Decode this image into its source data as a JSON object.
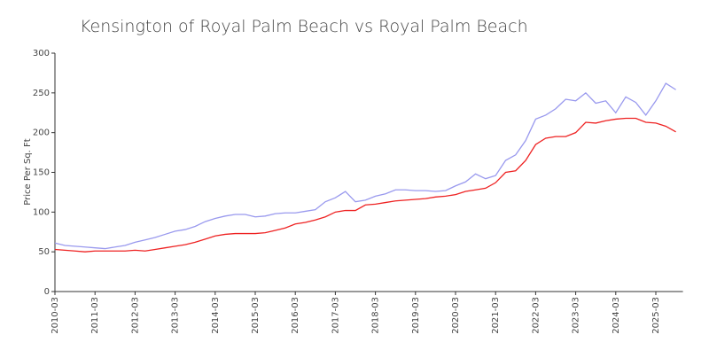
{
  "chart_data": {
    "type": "line",
    "title": "Kensington of Royal Palm Beach vs Royal Palm Beach",
    "y_label": "Price Per Sq. Ft",
    "categories": [
      "2010-03",
      null,
      null,
      null,
      "2011-03",
      null,
      null,
      null,
      "2012-03",
      null,
      null,
      null,
      "2013-03",
      null,
      null,
      null,
      "2014-03",
      null,
      null,
      null,
      "2015-03",
      null,
      null,
      null,
      "2016-03",
      null,
      null,
      null,
      "2017-03",
      null,
      null,
      null,
      "2018-03",
      null,
      null,
      null,
      "2019-03",
      null,
      null,
      null,
      "2020-03",
      null,
      null,
      null,
      "2021-03",
      null,
      null,
      null,
      "2022-03",
      null,
      null,
      null,
      "2023-03",
      null,
      null,
      null,
      "2024-03",
      null,
      null,
      null,
      "2025-03",
      null,
      null
    ],
    "series": [
      {
        "color": "#9999ee",
        "values": [
          61,
          58,
          57,
          56,
          55,
          54,
          56,
          58,
          62,
          65,
          68,
          72,
          76,
          78,
          82,
          88,
          92,
          95,
          97,
          97,
          94,
          95,
          98,
          99,
          99,
          101,
          103,
          113,
          118,
          126,
          113,
          115,
          120,
          123,
          128,
          128,
          127,
          127,
          126,
          127,
          133,
          138,
          148,
          142,
          146,
          165,
          172,
          190,
          217,
          222,
          230,
          242,
          240,
          250,
          237,
          240,
          225,
          245,
          238,
          222,
          240,
          262,
          254
        ]
      },
      {
        "color": "#ee2222",
        "values": [
          53,
          52,
          51,
          50,
          51,
          51,
          51,
          51,
          52,
          51,
          53,
          55,
          57,
          59,
          62,
          66,
          70,
          72,
          73,
          73,
          73,
          74,
          77,
          80,
          85,
          87,
          90,
          94,
          100,
          102,
          102,
          109,
          110,
          112,
          114,
          115,
          116,
          117,
          119,
          120,
          122,
          126,
          128,
          130,
          137,
          150,
          152,
          165,
          185,
          193,
          195,
          195,
          200,
          213,
          212,
          215,
          217,
          218,
          218,
          213,
          212,
          208,
          201
        ]
      }
    ],
    "ylim": [
      0,
      300
    ],
    "yticks": [
      0,
      50,
      100,
      150,
      200,
      250,
      300
    ]
  }
}
